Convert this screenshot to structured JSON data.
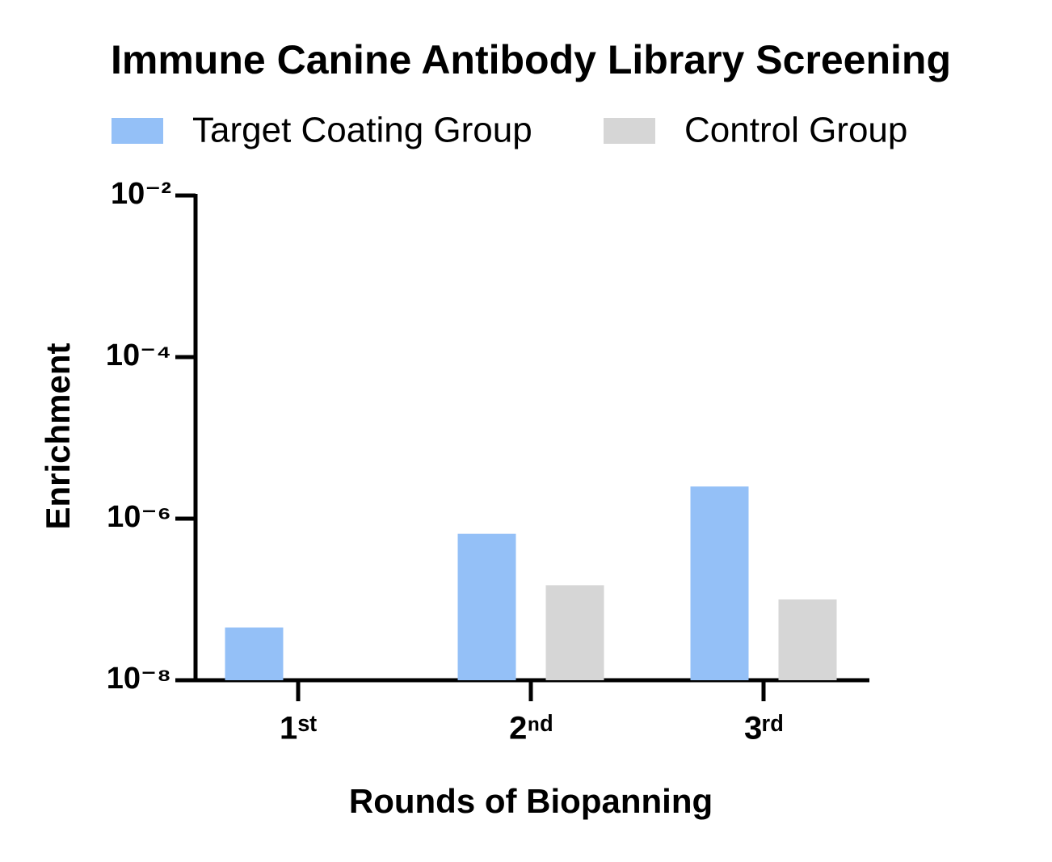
{
  "chart_data": {
    "type": "bar",
    "title": "Immune Canine Antibody Library Screening",
    "x_label": "Rounds of Biopanning",
    "y_label": "Enrichment",
    "categories": [
      "1ˢᵗ",
      "2ⁿᵈ",
      "3ʳᵈ"
    ],
    "series": [
      {
        "name": "Target Coating Group",
        "color": "#94c0f7",
        "values": [
          4.5e-08,
          6.5e-07,
          2.5e-06
        ]
      },
      {
        "name": "Control Group",
        "color": "#d6d6d6",
        "values": [
          null,
          1.5e-07,
          1e-07
        ]
      }
    ],
    "y_scale": "log",
    "ylim": [
      1e-08,
      0.01
    ],
    "yticks": [
      {
        "value": 1e-08,
        "label": "10⁻⁸"
      },
      {
        "value": 1e-06,
        "label": "10⁻⁶"
      },
      {
        "value": 0.0001,
        "label": "10⁻⁴"
      },
      {
        "value": 0.01,
        "label": "10⁻²"
      }
    ],
    "grid": false,
    "legend": "top"
  }
}
